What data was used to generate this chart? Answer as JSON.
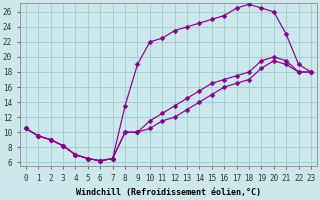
{
  "xlabel": "Windchill (Refroidissement éolien,°C)",
  "bg_color": "#cce8ec",
  "grid_color": "#99ccd0",
  "line_color": "#880088",
  "xlim_min": -0.5,
  "xlim_max": 23.5,
  "ylim_min": 5.5,
  "ylim_max": 27.2,
  "xticks": [
    0,
    1,
    2,
    3,
    4,
    5,
    6,
    7,
    8,
    9,
    10,
    11,
    12,
    13,
    14,
    15,
    16,
    17,
    18,
    19,
    20,
    21,
    22,
    23
  ],
  "yticks": [
    6,
    8,
    10,
    12,
    14,
    16,
    18,
    20,
    22,
    24,
    26
  ],
  "curve1_x": [
    0,
    1,
    2,
    3,
    4,
    5,
    6,
    7,
    8,
    9,
    10,
    11,
    12,
    13,
    14,
    15,
    16,
    17,
    18,
    19,
    20,
    21,
    22,
    23
  ],
  "curve1_y": [
    10.5,
    9.5,
    9.0,
    8.2,
    7.0,
    6.5,
    6.2,
    6.5,
    13.5,
    19.0,
    22.0,
    22.5,
    23.5,
    24.0,
    24.5,
    25.0,
    25.5,
    26.5,
    27.0,
    26.5,
    26.0,
    23.0,
    19.0,
    18.0
  ],
  "curve2_x": [
    0,
    1,
    2,
    3,
    4,
    5,
    6,
    7,
    8,
    9,
    10,
    11,
    12,
    13,
    14,
    15,
    16,
    17,
    18,
    19,
    20,
    21,
    22,
    23
  ],
  "curve2_y": [
    10.5,
    9.5,
    9.0,
    8.2,
    7.0,
    6.5,
    6.2,
    6.5,
    10.0,
    10.0,
    10.5,
    11.5,
    12.0,
    13.0,
    14.0,
    15.0,
    16.0,
    16.5,
    17.0,
    18.5,
    19.5,
    19.0,
    18.0,
    18.0
  ],
  "curve3_x": [
    0,
    1,
    2,
    3,
    4,
    5,
    6,
    7,
    8,
    9,
    10,
    11,
    12,
    13,
    14,
    15,
    16,
    17,
    18,
    19,
    20,
    21,
    22,
    23
  ],
  "curve3_y": [
    10.5,
    9.5,
    9.0,
    8.2,
    7.0,
    6.5,
    6.2,
    6.5,
    10.0,
    10.0,
    11.5,
    12.5,
    13.5,
    14.5,
    15.5,
    16.5,
    17.0,
    17.5,
    18.0,
    19.5,
    20.0,
    19.5,
    18.0,
    18.0
  ],
  "tick_fontsize": 5.5,
  "xlabel_fontsize": 6.0
}
